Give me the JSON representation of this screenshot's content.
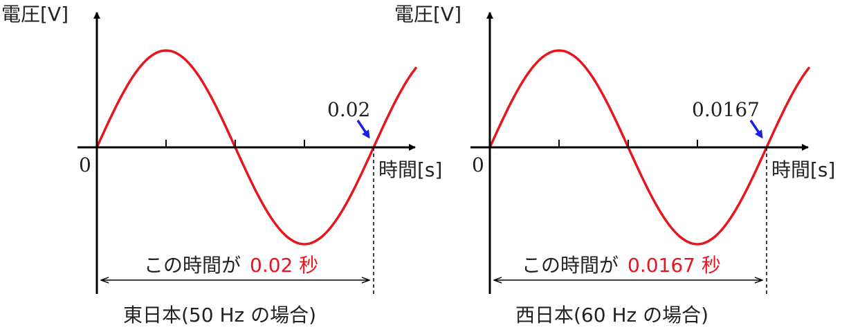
{
  "colors": {
    "wave": "#e8141e",
    "axis": "#000000",
    "pointer": "#1a20e0",
    "text": "#222222",
    "highlight": "#e8141e"
  },
  "panels": [
    {
      "id": "east",
      "y_axis_label": "電圧[V]",
      "x_axis_label": "時間[s]",
      "origin_label": "0",
      "period_label": "0.02",
      "span_text_prefix": "この時間が",
      "span_text_value": "0.02 秒",
      "caption": "東日本(50 Hz の場合)",
      "frequency_hz": 50,
      "period_s": 0.02
    },
    {
      "id": "west",
      "y_axis_label": "電圧[V]",
      "x_axis_label": "時間[s]",
      "origin_label": "0",
      "period_label": "0.0167",
      "span_text_prefix": "この時間が",
      "span_text_value": "0.0167 秒",
      "caption": "西日本(60 Hz の場合)",
      "frequency_hz": 60,
      "period_s": 0.0167
    }
  ]
}
